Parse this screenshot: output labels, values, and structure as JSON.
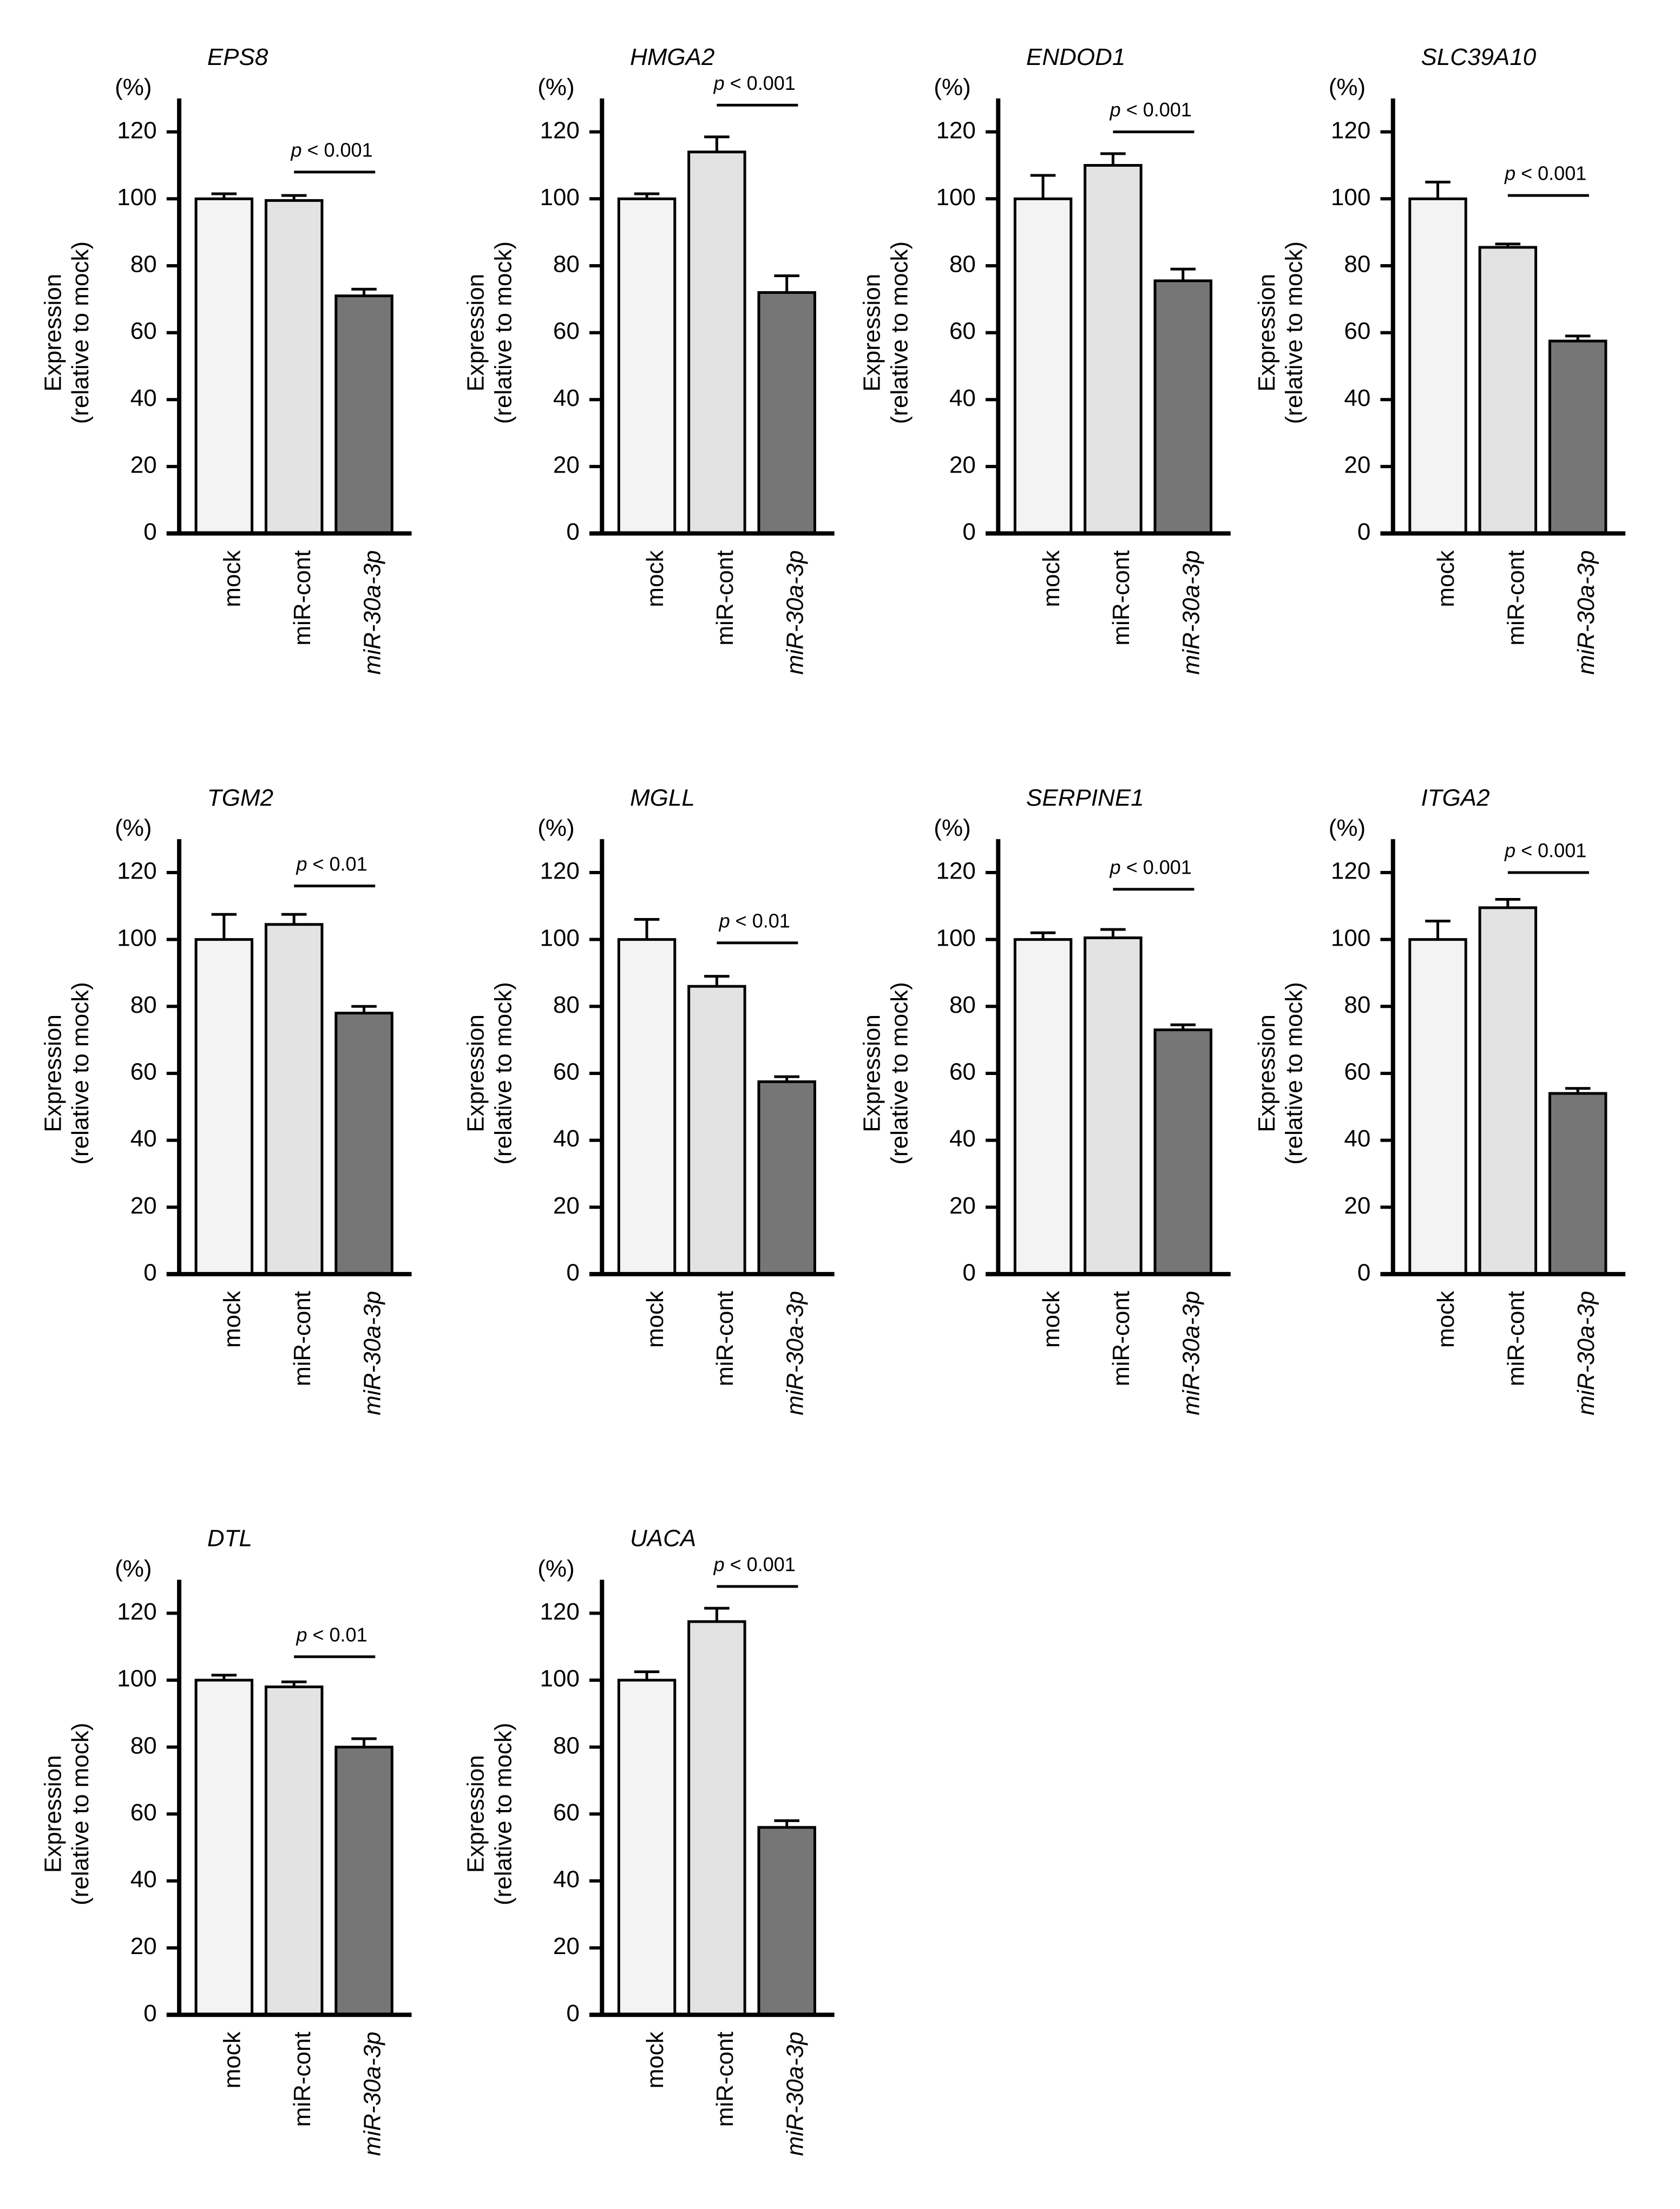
{
  "figure": {
    "y_unit": "(%)",
    "ylabel_line1": "Expression",
    "ylabel_line2": "(relative to mock)",
    "bar_colors": [
      "#f3f3f3",
      "#e3e3e3",
      "#767676"
    ]
  },
  "chart_data": [
    {
      "type": "bar",
      "title": "EPS8",
      "categories": [
        "mock",
        "miR-cont",
        "miR-30a-3p"
      ],
      "values": [
        100,
        99.5,
        71
      ],
      "errors": [
        1.5,
        1.5,
        2
      ],
      "ylim": [
        0,
        130
      ],
      "yticks": [
        0,
        20,
        40,
        60,
        80,
        100,
        120
      ],
      "ylabel": "Expression (relative to mock)",
      "annotation": {
        "text": "p < 0.001",
        "from": 1,
        "to": 2,
        "level": 108
      }
    },
    {
      "type": "bar",
      "title": "HMGA2",
      "categories": [
        "mock",
        "miR-cont",
        "miR-30a-3p"
      ],
      "values": [
        100,
        114,
        72
      ],
      "errors": [
        1.5,
        4.5,
        5
      ],
      "ylim": [
        0,
        130
      ],
      "yticks": [
        0,
        20,
        40,
        60,
        80,
        100,
        120
      ],
      "ylabel": "Expression (relative to mock)",
      "annotation": {
        "text": "p < 0.001",
        "from": 1,
        "to": 2,
        "level": 128
      }
    },
    {
      "type": "bar",
      "title": "ENDOD1",
      "categories": [
        "mock",
        "miR-cont",
        "miR-30a-3p"
      ],
      "values": [
        100,
        110,
        75.5
      ],
      "errors": [
        7,
        3.5,
        3.5
      ],
      "ylim": [
        0,
        130
      ],
      "yticks": [
        0,
        20,
        40,
        60,
        80,
        100,
        120
      ],
      "ylabel": "Expression (relative to mock)",
      "annotation": {
        "text": "p < 0.001",
        "from": 1,
        "to": 2,
        "level": 120
      }
    },
    {
      "type": "bar",
      "title": "SLC39A10",
      "categories": [
        "mock",
        "miR-cont",
        "miR-30a-3p"
      ],
      "values": [
        100,
        85.5,
        57.5
      ],
      "errors": [
        5,
        1,
        1.5
      ],
      "ylim": [
        0,
        130
      ],
      "yticks": [
        0,
        20,
        40,
        60,
        80,
        100,
        120
      ],
      "ylabel": "Expression (relative to mock)",
      "annotation": {
        "text": "p < 0.001",
        "from": 1,
        "to": 2,
        "level": 101
      }
    },
    {
      "type": "bar",
      "title": "TGM2",
      "categories": [
        "mock",
        "miR-cont",
        "miR-30a-3p"
      ],
      "values": [
        100,
        104.5,
        78
      ],
      "errors": [
        7.5,
        3,
        2
      ],
      "ylim": [
        0,
        130
      ],
      "yticks": [
        0,
        20,
        40,
        60,
        80,
        100,
        120
      ],
      "ylabel": "Expression (relative to mock)",
      "annotation": {
        "text": "p < 0.01",
        "from": 1,
        "to": 2,
        "level": 116
      }
    },
    {
      "type": "bar",
      "title": "MGLL",
      "categories": [
        "mock",
        "miR-cont",
        "miR-30a-3p"
      ],
      "values": [
        100,
        86,
        57.5
      ],
      "errors": [
        6,
        3,
        1.5
      ],
      "ylim": [
        0,
        130
      ],
      "yticks": [
        0,
        20,
        40,
        60,
        80,
        100,
        120
      ],
      "ylabel": "Expression (relative to mock)",
      "annotation": {
        "text": "p < 0.01",
        "from": 1,
        "to": 2,
        "level": 99
      }
    },
    {
      "type": "bar",
      "title": "SERPINE1",
      "categories": [
        "mock",
        "miR-cont",
        "miR-30a-3p"
      ],
      "values": [
        100,
        100.5,
        73
      ],
      "errors": [
        2,
        2.5,
        1.5
      ],
      "ylim": [
        0,
        130
      ],
      "yticks": [
        0,
        20,
        40,
        60,
        80,
        100,
        120
      ],
      "ylabel": "Expression (relative to mock)",
      "annotation": {
        "text": "p < 0.001",
        "from": 1,
        "to": 2,
        "level": 115
      }
    },
    {
      "type": "bar",
      "title": "ITGA2",
      "categories": [
        "mock",
        "miR-cont",
        "miR-30a-3p"
      ],
      "values": [
        100,
        109.5,
        54
      ],
      "errors": [
        5.5,
        2.5,
        1.5
      ],
      "ylim": [
        0,
        130
      ],
      "yticks": [
        0,
        20,
        40,
        60,
        80,
        100,
        120
      ],
      "ylabel": "Expression (relative to mock)",
      "annotation": {
        "text": "p < 0.001",
        "from": 1,
        "to": 2,
        "level": 120
      }
    },
    {
      "type": "bar",
      "title": "DTL",
      "categories": [
        "mock",
        "miR-cont",
        "miR-30a-3p"
      ],
      "values": [
        100,
        98,
        80
      ],
      "errors": [
        1.5,
        1.5,
        2.5
      ],
      "ylim": [
        0,
        130
      ],
      "yticks": [
        0,
        20,
        40,
        60,
        80,
        100,
        120
      ],
      "ylabel": "Expression (relative to mock)",
      "annotation": {
        "text": "p < 0.01",
        "from": 1,
        "to": 2,
        "level": 107
      }
    },
    {
      "type": "bar",
      "title": "UACA",
      "categories": [
        "mock",
        "miR-cont",
        "miR-30a-3p"
      ],
      "values": [
        100,
        117.5,
        56
      ],
      "errors": [
        2.5,
        4,
        2
      ],
      "ylim": [
        0,
        130
      ],
      "yticks": [
        0,
        20,
        40,
        60,
        80,
        100,
        120
      ],
      "ylabel": "Expression (relative to mock)",
      "annotation": {
        "text": "p < 0.001",
        "from": 1,
        "to": 2,
        "level": 128
      }
    }
  ]
}
